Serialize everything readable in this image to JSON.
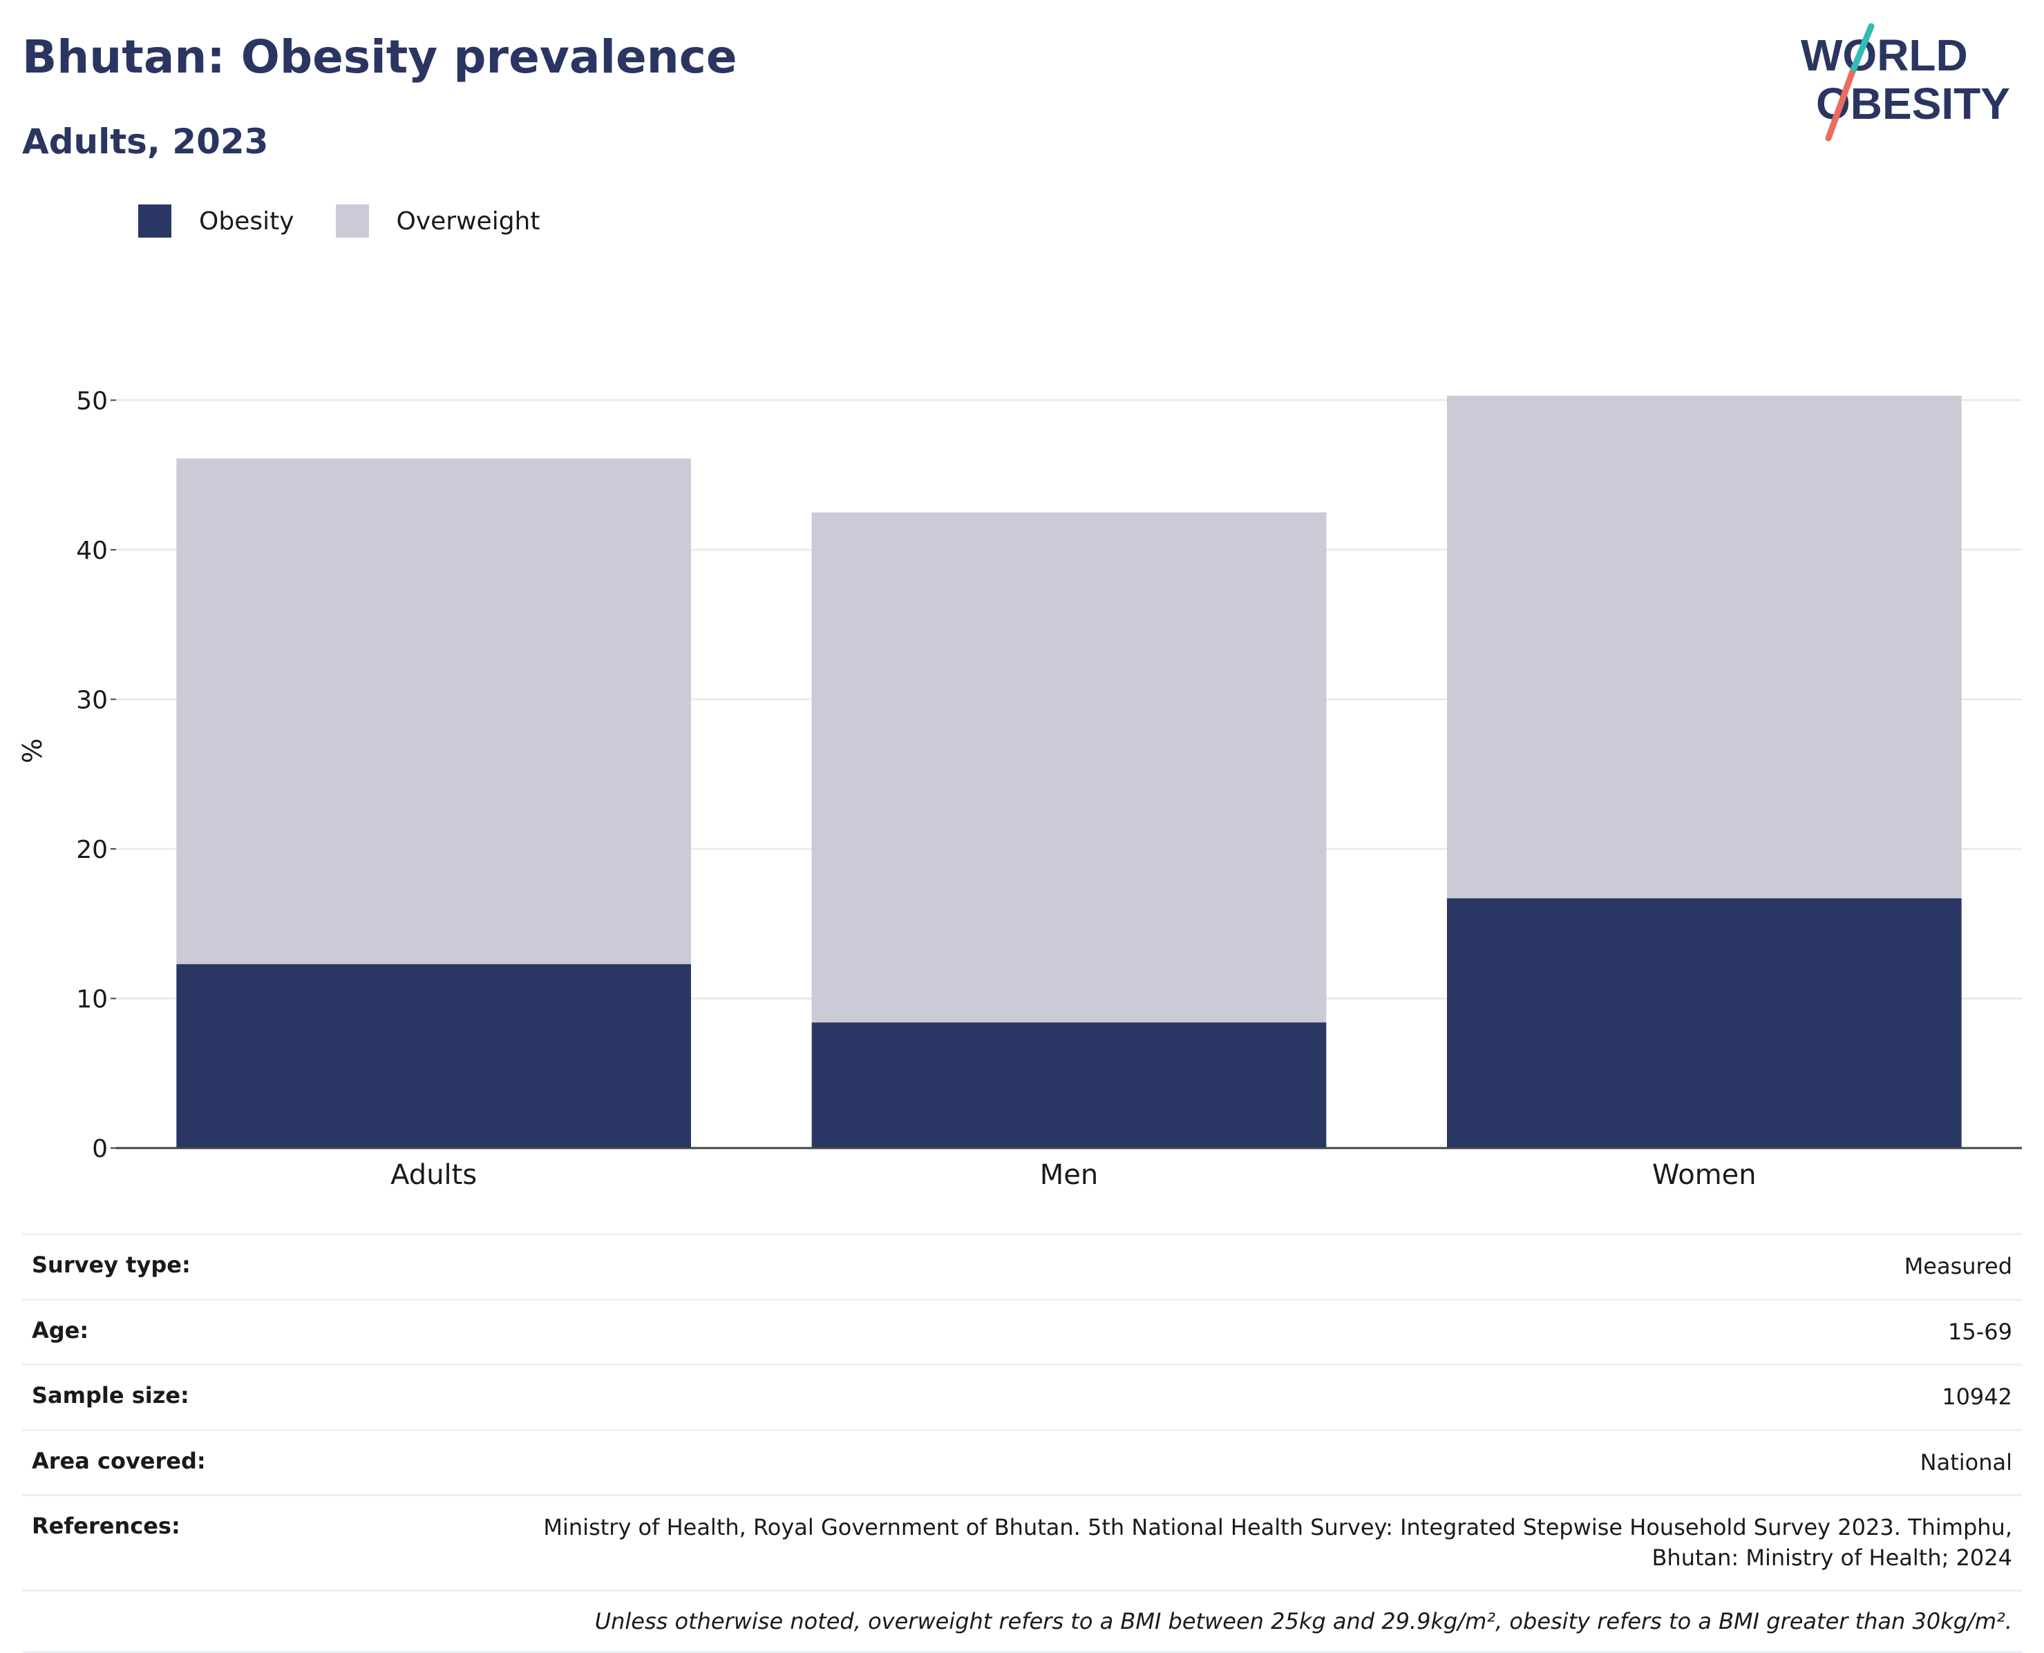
{
  "header": {
    "title": "Bhutan: Obesity prevalence",
    "subtitle": "Adults, 2023"
  },
  "logo": {
    "line1": "WORLD",
    "line2": "OBESITY"
  },
  "legend": [
    {
      "label": "Obesity",
      "color": "#2a3663"
    },
    {
      "label": "Overweight",
      "color": "#cacbd7"
    }
  ],
  "chart_data": {
    "type": "bar",
    "stacked": true,
    "categories": [
      "Adults",
      "Men",
      "Women"
    ],
    "series": [
      {
        "name": "Obesity",
        "values": [
          12.3,
          8.4,
          16.7
        ],
        "color": "#2a3663"
      },
      {
        "name": "Overweight",
        "values": [
          33.8,
          34.1,
          33.6
        ],
        "color": "#cacbd7"
      }
    ],
    "ylabel": "%",
    "ylim": [
      0,
      52
    ],
    "yticks": [
      0,
      10,
      20,
      30,
      40,
      50
    ],
    "grid": true,
    "legend_position": "top-left"
  },
  "info": {
    "rows": [
      {
        "key": "Survey type:",
        "value": "Measured"
      },
      {
        "key": "Age:",
        "value": "15-69"
      },
      {
        "key": "Sample size:",
        "value": "10942"
      },
      {
        "key": "Area covered:",
        "value": "National"
      },
      {
        "key": "References:",
        "value_line1": "Ministry of Health, Royal Government of Bhutan. 5th National Health Survey: Integrated Stepwise Household Survey 2023. Thimphu,",
        "value_line2": "Bhutan: Ministry of Health; 2024"
      }
    ],
    "note": "Unless otherwise noted, overweight refers to a BMI between 25kg and 29.9kg/m², obesity refers to a BMI greater than 30kg/m²."
  },
  "colors": {
    "text_dark": "#2b3562",
    "logo_teal": "#2fbdb4",
    "logo_coral": "#ec6b5f"
  }
}
